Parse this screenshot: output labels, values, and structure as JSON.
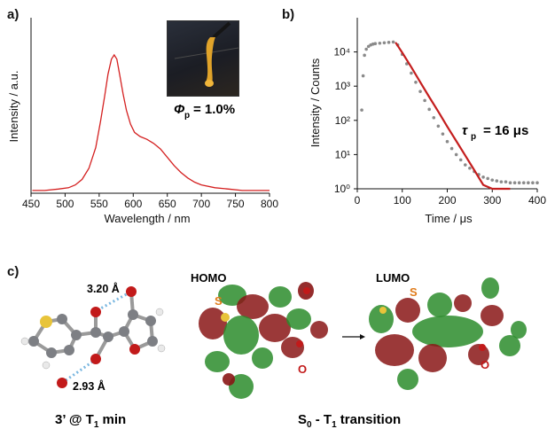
{
  "panels": {
    "a": {
      "letter": "a)"
    },
    "b": {
      "letter": "b)"
    },
    "c": {
      "letter": "c)"
    }
  },
  "inset": {
    "phi_symbol": "Φ",
    "phi_sub": "p",
    "phi_value": "= 1.0%"
  },
  "tau": {
    "symbol": "τ",
    "sub": "p",
    "value": "= 16 μs"
  },
  "chart_data": [
    {
      "type": "line",
      "panel": "a",
      "xlabel": "Wavelength / nm",
      "ylabel": "Intensity / a.u.",
      "xlim": [
        450,
        800
      ],
      "x_ticks": [
        "450",
        "500",
        "550",
        "600",
        "650",
        "700",
        "750",
        "800"
      ],
      "line_color": "#d42020",
      "series": [
        {
          "x": [
            452,
            470,
            490,
            505,
            515,
            525,
            535,
            545,
            552,
            558,
            563,
            568,
            572,
            576,
            580,
            585,
            590,
            596,
            602,
            610,
            620,
            630,
            640,
            650,
            660,
            670,
            680,
            690,
            700,
            720,
            740,
            760,
            780,
            800
          ],
          "values": [
            0.02,
            0.02,
            0.03,
            0.04,
            0.06,
            0.1,
            0.18,
            0.33,
            0.52,
            0.7,
            0.86,
            0.97,
            1.0,
            0.97,
            0.86,
            0.72,
            0.6,
            0.5,
            0.44,
            0.41,
            0.39,
            0.36,
            0.32,
            0.26,
            0.2,
            0.15,
            0.11,
            0.08,
            0.06,
            0.04,
            0.03,
            0.02,
            0.02,
            0.02
          ]
        }
      ]
    },
    {
      "type": "scatter",
      "panel": "b",
      "xlabel": "Time / μs",
      "ylabel": "Intensity / Counts",
      "xlim": [
        0,
        400
      ],
      "ylim": [
        1,
        100000
      ],
      "yscale": "log",
      "x_ticks": [
        "0",
        "100",
        "200",
        "300",
        "400"
      ],
      "y_ticks": [
        "10⁰",
        "10¹",
        "10²",
        "10³",
        "10⁴"
      ],
      "series": [
        {
          "style": "data",
          "color": "#8a8a8a",
          "x": [
            10,
            13,
            16,
            20,
            25,
            30,
            35,
            40,
            50,
            60,
            70,
            80,
            90,
            100,
            110,
            120,
            130,
            140,
            150,
            160,
            170,
            180,
            190,
            200,
            210,
            220,
            230,
            240,
            250,
            260,
            270,
            280,
            290,
            300,
            310,
            320,
            330,
            340,
            350,
            360,
            370,
            380,
            390,
            400
          ],
          "values": [
            200,
            2000,
            8000,
            12000,
            14500,
            16000,
            17000,
            17500,
            18000,
            18500,
            19000,
            19500,
            16000,
            8500,
            4500,
            2400,
            1300,
            700,
            380,
            210,
            120,
            68,
            40,
            24,
            15,
            10,
            7,
            5,
            4,
            3.2,
            2.6,
            2.2,
            2,
            1.8,
            1.7,
            1.6,
            1.6,
            1.5,
            1.5,
            1.5,
            1.5,
            1.5,
            1.5,
            1.5
          ]
        },
        {
          "style": "fit",
          "color": "#c41e1e",
          "x": [
            85,
            100,
            120,
            140,
            160,
            180,
            200,
            220,
            240,
            260,
            280,
            300,
            320,
            340
          ],
          "values": [
            19000,
            9500,
            3600,
            1300,
            480,
            180,
            66,
            25,
            9.4,
            3.5,
            1.3,
            1.0,
            1.0,
            1.0
          ]
        }
      ]
    }
  ],
  "molecule": {
    "dist_top": "3.20 Å",
    "dist_bottom": "2.93 Å",
    "title_prefix": "3’ @ T",
    "title_sub": "1",
    "title_suffix": " min"
  },
  "orbitals": {
    "homo_label": "HOMO",
    "lumo_label": "LUMO",
    "s_label": "S",
    "o_label": "O",
    "title_s": "S",
    "title_s_sub": "0",
    "title_mid": " - T",
    "title_t_sub": "1",
    "title_suffix": " transition"
  },
  "colors": {
    "line_red": "#d42020",
    "data_gray": "#8a8a8a",
    "fit_red": "#c41e1e",
    "dist_blue": "#7ab7e0",
    "sulfur": "#e8c43a",
    "oxygen": "#c21a1a",
    "carbon": "#7d7f84",
    "hydrogen": "#e9e9e9",
    "lobe_green": "#2c8c2c",
    "lobe_red": "#8a1616",
    "label_orange": "#e07b1a"
  }
}
